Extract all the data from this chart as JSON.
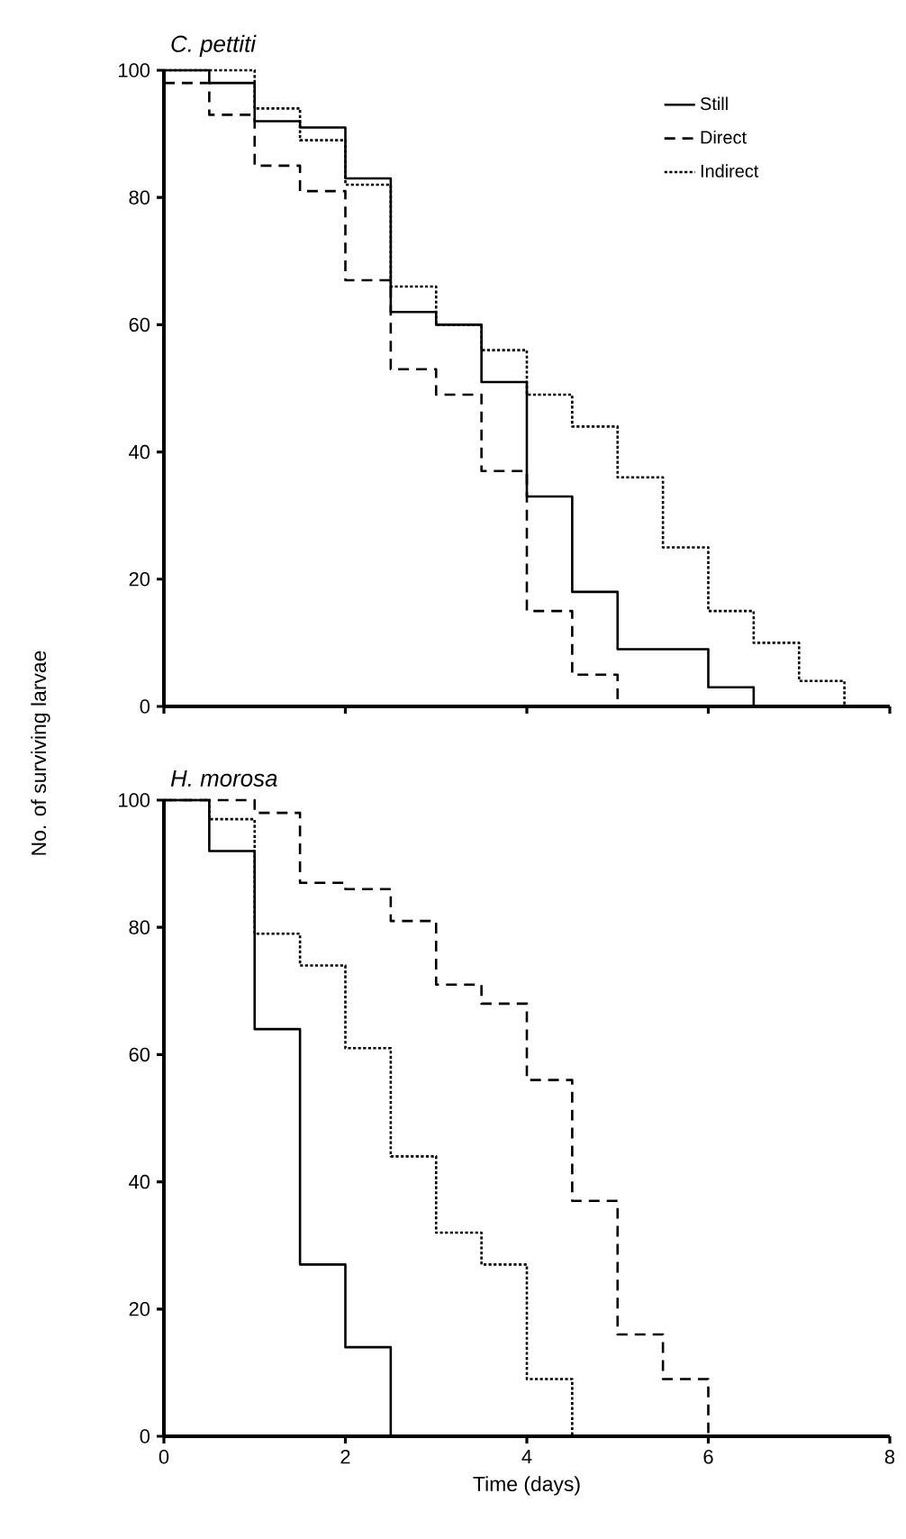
{
  "chart_data": [
    {
      "type": "step",
      "title": "C. pettiti",
      "ylabel": "No. of surviving larvae",
      "xlim": [
        0,
        8
      ],
      "ylim": [
        0,
        100
      ],
      "xticks": [
        0,
        2,
        4,
        6,
        8
      ],
      "yticks": [
        0,
        20,
        40,
        60,
        80,
        100
      ],
      "tick_labels": "y",
      "legend": "top right",
      "grid": false,
      "marker": "none",
      "series": [
        {
          "name": "Still",
          "color": "#000000",
          "line_style": "solid",
          "x": [
            0,
            0.5,
            1,
            1.5,
            2,
            2.5,
            3,
            3.5,
            4,
            4.5,
            5,
            6,
            6.5
          ],
          "values": [
            100,
            98,
            92,
            91,
            83,
            62,
            60,
            51,
            33,
            18,
            9,
            3,
            0
          ]
        },
        {
          "name": "Direct",
          "color": "#000000",
          "line_style": "dashed",
          "x": [
            0,
            0.5,
            1,
            1.5,
            2,
            2.5,
            3,
            3.5,
            4,
            4.5,
            5
          ],
          "values": [
            98,
            93,
            85,
            81,
            67,
            53,
            49,
            37,
            15,
            5,
            0
          ]
        },
        {
          "name": "Indirect",
          "color": "#000000",
          "line_style": "dotted",
          "x": [
            0,
            1,
            1.5,
            2,
            2.5,
            3,
            3.5,
            4,
            4.5,
            5,
            5.5,
            6,
            6.5,
            7,
            7.5
          ],
          "values": [
            100,
            94,
            89,
            82,
            66,
            60,
            56,
            49,
            44,
            36,
            25,
            15,
            10,
            4,
            0
          ]
        }
      ]
    },
    {
      "type": "step",
      "title": "H. morosa",
      "xlabel": "Time (days)",
      "xlim": [
        0,
        8
      ],
      "ylim": [
        0,
        100
      ],
      "xticks": [
        0,
        2,
        4,
        6,
        8
      ],
      "yticks": [
        0,
        20,
        40,
        60,
        80,
        100
      ],
      "legend": false,
      "grid": false,
      "marker": "none",
      "series": [
        {
          "color": "#000000",
          "line_style": "solid",
          "x": [
            0,
            0.5,
            1,
            1.5,
            2,
            2.5
          ],
          "values": [
            100,
            92,
            64,
            27,
            14,
            0
          ]
        },
        {
          "color": "#000000",
          "line_style": "dashed",
          "x": [
            0,
            1,
            1.5,
            2,
            2.5,
            3,
            3.5,
            4,
            4.5,
            5,
            5.5,
            6
          ],
          "values": [
            100,
            98,
            87,
            86,
            81,
            71,
            68,
            56,
            37,
            16,
            9,
            0
          ]
        },
        {
          "color": "#000000",
          "line_style": "dotted",
          "x": [
            0,
            0.5,
            1,
            1.5,
            2,
            2.5,
            3,
            3.5,
            4,
            4.5
          ],
          "values": [
            100,
            97,
            79,
            74,
            61,
            44,
            32,
            27,
            9,
            0
          ]
        }
      ]
    }
  ]
}
